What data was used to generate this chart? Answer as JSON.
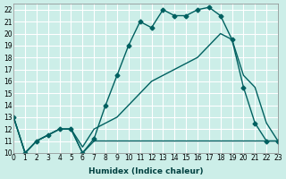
{
  "xlabel": "Humidex (Indice chaleur)",
  "background_color": "#cceee8",
  "grid_color": "#ffffff",
  "line_color": "#006060",
  "xlim": [
    0,
    23
  ],
  "ylim": [
    10,
    22.5
  ],
  "yticks": [
    10,
    11,
    12,
    13,
    14,
    15,
    16,
    17,
    18,
    19,
    20,
    21,
    22
  ],
  "xticks": [
    0,
    1,
    2,
    3,
    4,
    5,
    6,
    7,
    8,
    9,
    10,
    11,
    12,
    13,
    14,
    15,
    16,
    17,
    18,
    19,
    20,
    21,
    22,
    23
  ],
  "series": [
    {
      "x": [
        0,
        1,
        2,
        3,
        4,
        5,
        6,
        7,
        8,
        9,
        10,
        11,
        12,
        13,
        14,
        15,
        16,
        17,
        18,
        19,
        20,
        21,
        22,
        23
      ],
      "y": [
        13,
        10,
        11,
        11.5,
        12,
        12,
        10,
        11,
        11,
        11,
        11,
        11,
        11,
        11,
        11,
        11,
        11,
        11,
        11,
        11,
        11,
        11,
        11,
        11
      ],
      "has_markers": false
    },
    {
      "x": [
        0,
        1,
        2,
        3,
        4,
        5,
        6,
        7,
        8,
        9,
        10,
        11,
        12,
        13,
        14,
        15,
        16,
        17,
        18,
        19,
        20,
        21,
        22,
        23
      ],
      "y": [
        13,
        10,
        11,
        11.5,
        12,
        12,
        10.5,
        12,
        12.5,
        13,
        14,
        15,
        16,
        16.5,
        17,
        17.5,
        18,
        19,
        20,
        19.5,
        16.5,
        15.5,
        12.5,
        11
      ],
      "has_markers": false
    },
    {
      "x": [
        0,
        1,
        2,
        3,
        4,
        5,
        6,
        7,
        8,
        9,
        10,
        11,
        12,
        13,
        14,
        15,
        16,
        17,
        18,
        19,
        20,
        21,
        22,
        23
      ],
      "y": [
        13,
        10,
        11,
        11.5,
        12,
        12,
        10,
        11.2,
        14,
        16.5,
        19,
        21,
        20.5,
        22,
        21.5,
        21.5,
        22,
        22.2,
        21.5,
        19.5,
        15.5,
        12.5,
        11,
        11
      ],
      "has_markers": true
    }
  ]
}
